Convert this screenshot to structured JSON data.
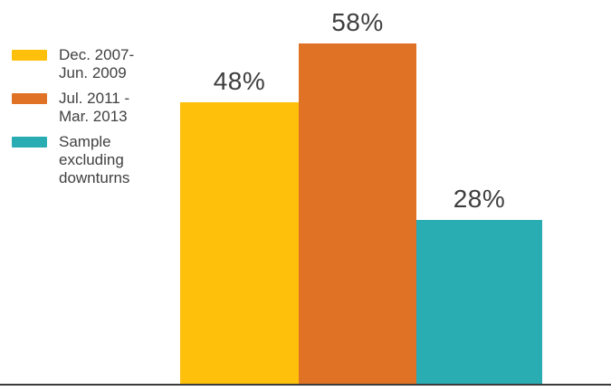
{
  "chart_data": {
    "type": "bar",
    "title": "",
    "xlabel": "",
    "ylabel": "",
    "categories": [
      "Dec. 2007-Jun. 2009",
      "Jul. 2011 - Mar. 2013",
      "Sample excluding downturns"
    ],
    "values": [
      48,
      58,
      28
    ],
    "bar_labels": [
      "48%",
      "58%",
      "28%"
    ],
    "colors": [
      "#fec00b",
      "#e07226",
      "#29acb2"
    ],
    "ylim": [
      0,
      65
    ],
    "grid": false,
    "axis_line_color": "#3b3b3b",
    "value_label_color": "#3e3e3e",
    "legend_position": "top-left",
    "legend": [
      {
        "label": "Dec. 2007-\nJun. 2009",
        "color": "#fec00b"
      },
      {
        "label": "Jul. 2011 -\nMar. 2013",
        "color": "#e07226"
      },
      {
        "label": "Sample\nexcluding\ndownturns",
        "color": "#29acb2"
      }
    ]
  }
}
